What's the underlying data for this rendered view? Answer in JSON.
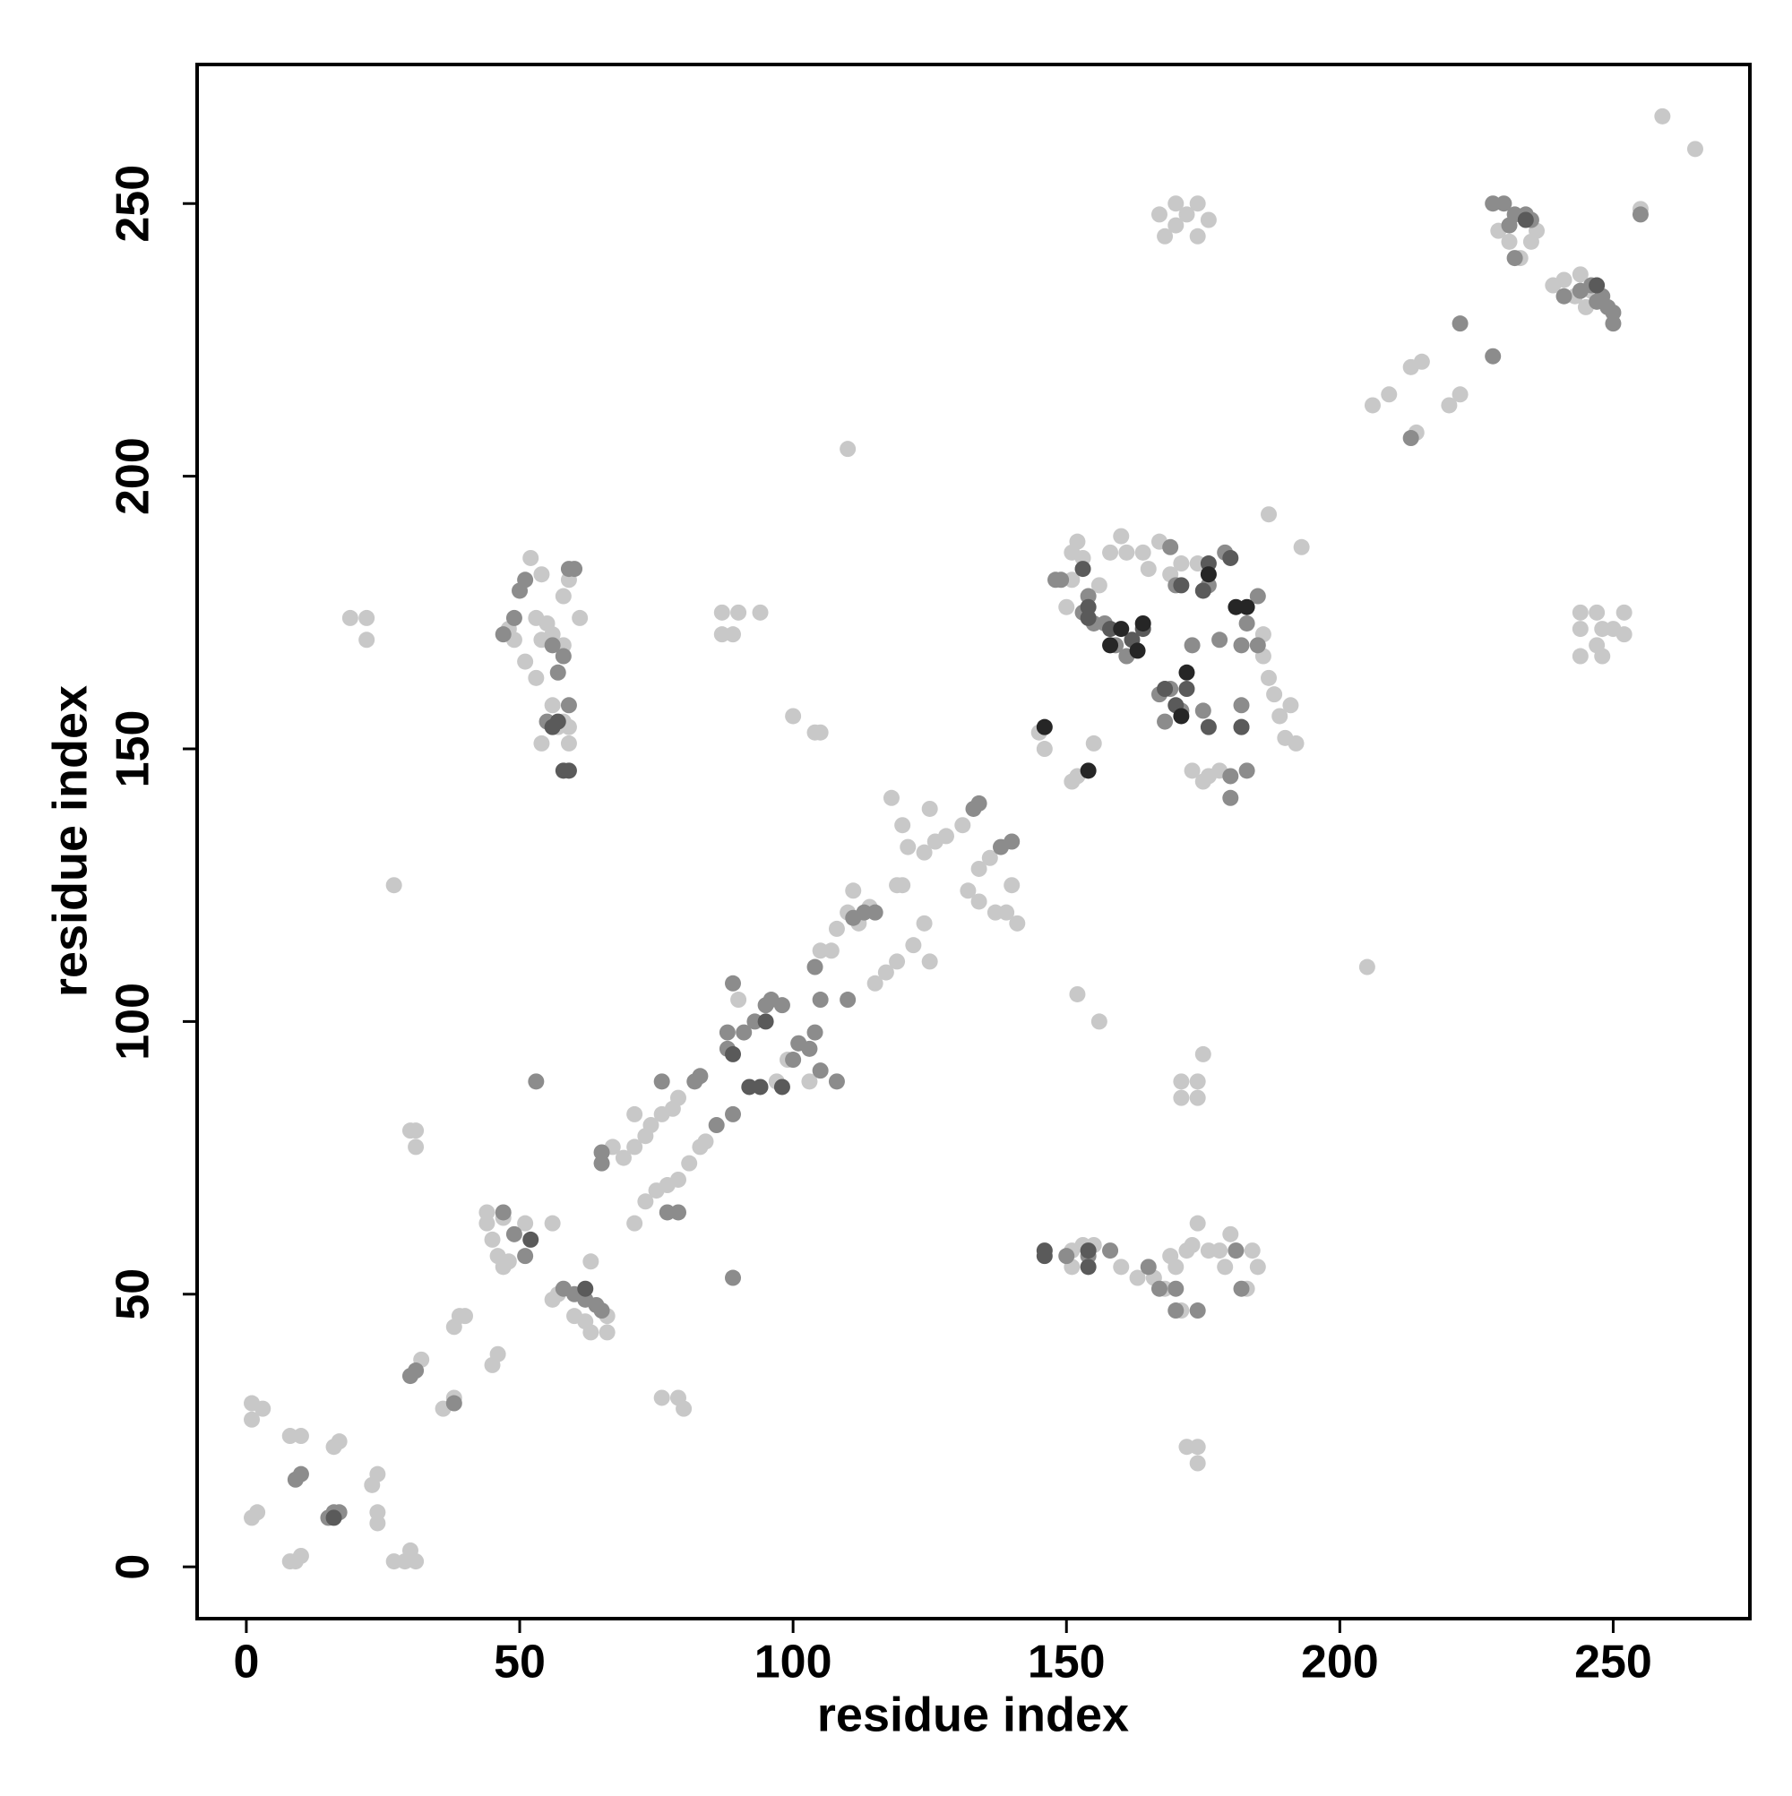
{
  "chart_data": {
    "type": "scatter",
    "xlabel": "residue index",
    "ylabel": "residue index",
    "xlim": [
      -9,
      275
    ],
    "ylim": [
      -9.5,
      275.5
    ],
    "xticks": [
      0,
      50,
      100,
      150,
      200,
      250
    ],
    "yticks": [
      0,
      50,
      100,
      150,
      200,
      250
    ],
    "series": [
      {
        "color": "#c8c8c8",
        "x": [
          1,
          1,
          1,
          2,
          3,
          8,
          9,
          10,
          10,
          8,
          16,
          17,
          23,
          24,
          24,
          24,
          27,
          29,
          30,
          31,
          30,
          31,
          31,
          27,
          19,
          22,
          22,
          32,
          36,
          38,
          38,
          40,
          39,
          45,
          46,
          44,
          45,
          46,
          47,
          48,
          44,
          47,
          51,
          56,
          56,
          57,
          60,
          62,
          63,
          66,
          66,
          63,
          67,
          69,
          71,
          71,
          73,
          74,
          76,
          78,
          79,
          71,
          73,
          75,
          77,
          79,
          81,
          83,
          84,
          79,
          80,
          76,
          87,
          87,
          89,
          90,
          94,
          100,
          104,
          105,
          110,
          90,
          97,
          99,
          101,
          103,
          105,
          107,
          108,
          110,
          111,
          112,
          114,
          119,
          120,
          118,
          120,
          121,
          124,
          125,
          125,
          126,
          128,
          115,
          117,
          119,
          122,
          124,
          131,
          134,
          136,
          137,
          139,
          132,
          134,
          140,
          141,
          145,
          146,
          151,
          152,
          155,
          152,
          156,
          150,
          151,
          151,
          152,
          153,
          156,
          158,
          160,
          161,
          164,
          165,
          167,
          169,
          171,
          174,
          176,
          186,
          186,
          187,
          188,
          189,
          190,
          191,
          192,
          173,
          175,
          176,
          178,
          187,
          193,
          167,
          170,
          170,
          172,
          174,
          174,
          176,
          168,
          172,
          174,
          174,
          171,
          171,
          174,
          174,
          175,
          151,
          151,
          153,
          155,
          160,
          163,
          166,
          168,
          169,
          170,
          171,
          172,
          173,
          174,
          176,
          178,
          179,
          180,
          181,
          184,
          185,
          183,
          205,
          206,
          209,
          213,
          215,
          214,
          220,
          222,
          229,
          231,
          233,
          235,
          236,
          239,
          241,
          243,
          244,
          245,
          246,
          255,
          259,
          265,
          244,
          244,
          247,
          247,
          248,
          250,
          252,
          252,
          248,
          244,
          52,
          54,
          53,
          54,
          55,
          56,
          58,
          59,
          61,
          58,
          56,
          58,
          59,
          59,
          53,
          51,
          49,
          48,
          54,
          57
        ],
        "values": [
          27,
          30,
          9,
          10,
          29,
          1,
          1,
          2,
          24,
          24,
          22,
          23,
          15,
          17,
          10,
          8,
          1,
          1,
          3,
          1,
          80,
          80,
          77,
          125,
          174,
          174,
          170,
          38,
          29,
          31,
          44,
          46,
          46,
          37,
          39,
          63,
          60,
          57,
          55,
          56,
          65,
          64,
          63,
          63,
          49,
          50,
          46,
          45,
          43,
          43,
          46,
          56,
          77,
          75,
          77,
          83,
          79,
          81,
          83,
          84,
          86,
          63,
          67,
          69,
          70,
          71,
          74,
          77,
          78,
          31,
          29,
          31,
          175,
          171,
          171,
          175,
          175,
          156,
          153,
          153,
          205,
          104,
          89,
          93,
          96,
          89,
          113,
          113,
          117,
          120,
          124,
          118,
          121,
          125,
          125,
          141,
          136,
          132,
          131,
          139,
          111,
          133,
          134,
          107,
          109,
          111,
          114,
          118,
          136,
          128,
          130,
          120,
          120,
          124,
          122,
          125,
          118,
          153,
          150,
          144,
          145,
          151,
          105,
          100,
          176,
          181,
          186,
          188,
          185,
          180,
          186,
          189,
          186,
          186,
          183,
          188,
          182,
          184,
          184,
          182,
          171,
          167,
          163,
          160,
          156,
          152,
          158,
          151,
          146,
          144,
          145,
          146,
          193,
          187,
          248,
          250,
          246,
          248,
          244,
          250,
          247,
          244,
          22,
          22,
          19,
          86,
          89,
          89,
          86,
          94,
          55,
          58,
          59,
          59,
          55,
          53,
          53,
          51,
          57,
          55,
          47,
          58,
          59,
          63,
          58,
          58,
          55,
          61,
          58,
          58,
          55,
          51,
          110,
          213,
          215,
          220,
          221,
          208,
          213,
          215,
          245,
          243,
          240,
          243,
          245,
          235,
          236,
          233,
          237,
          231,
          234,
          249,
          266,
          260,
          172,
          175,
          175,
          169,
          172,
          172,
          175,
          171,
          167,
          167,
          185,
          182,
          174,
          170,
          173,
          171,
          178,
          181,
          174,
          169,
          158,
          155,
          151,
          154,
          163,
          166,
          170,
          172,
          151,
          154
        ]
      },
      {
        "color": "#8c8c8c",
        "x": [
          9,
          10,
          15,
          16,
          17,
          30,
          31,
          38,
          47,
          49,
          51,
          53,
          58,
          60,
          62,
          64,
          65,
          65,
          65,
          77,
          79,
          76,
          82,
          83,
          86,
          89,
          89,
          88,
          88,
          91,
          93,
          95,
          96,
          98,
          100,
          101,
          104,
          103,
          105,
          108,
          104,
          105,
          110,
          111,
          113,
          115,
          133,
          134,
          140,
          138,
          89,
          49,
          47,
          51,
          50,
          56,
          58,
          57,
          59,
          55,
          59,
          60,
          148,
          149,
          154,
          155,
          153,
          157,
          159,
          161,
          167,
          169,
          168,
          171,
          175,
          169,
          170,
          176,
          179,
          183,
          185,
          185,
          182,
          182,
          183,
          180,
          180,
          150,
          154,
          158,
          165,
          167,
          170,
          170,
          174,
          181,
          182,
          228,
          230,
          231,
          232,
          234,
          235,
          232,
          222,
          228,
          213,
          241,
          247,
          249,
          250,
          250,
          244,
          246,
          248,
          255,
          182,
          178,
          173
        ],
        "values": [
          16,
          17,
          9,
          10,
          10,
          35,
          36,
          30,
          65,
          61,
          57,
          89,
          51,
          50,
          49,
          48,
          47,
          76,
          74,
          65,
          65,
          89,
          89,
          90,
          81,
          83,
          107,
          98,
          95,
          98,
          100,
          103,
          104,
          103,
          93,
          96,
          98,
          95,
          91,
          89,
          110,
          104,
          104,
          119,
          120,
          120,
          139,
          140,
          133,
          132,
          53,
          174,
          171,
          181,
          179,
          169,
          167,
          164,
          158,
          155,
          183,
          183,
          181,
          181,
          178,
          173,
          175,
          173,
          169,
          167,
          160,
          161,
          155,
          157,
          157,
          187,
          180,
          180,
          186,
          173,
          178,
          169,
          158,
          154,
          146,
          145,
          141,
          57,
          57,
          58,
          55,
          51,
          51,
          47,
          47,
          58,
          51,
          250,
          250,
          246,
          248,
          248,
          247,
          240,
          228,
          222,
          207,
          233,
          232,
          231,
          228,
          230,
          234,
          235,
          233,
          248,
          169,
          170,
          169
        ]
      },
      {
        "color": "#5a5a5a",
        "x": [
          16,
          154,
          154,
          146,
          146,
          153,
          154,
          154,
          158,
          162,
          164,
          170,
          172,
          168,
          176,
          182,
          180,
          175,
          247,
          234,
          58,
          59,
          57,
          56,
          92,
          94,
          98,
          95,
          89,
          62,
          52,
          171,
          176
        ],
        "values": [
          9,
          55,
          58,
          58,
          57,
          183,
          176,
          174,
          172,
          170,
          172,
          158,
          161,
          161,
          154,
          154,
          185,
          179,
          235,
          247,
          146,
          146,
          155,
          154,
          88,
          88,
          88,
          100,
          94,
          51,
          60,
          180,
          184
        ]
      },
      {
        "color": "#262626",
        "x": [
          146,
          154,
          158,
          160,
          163,
          172,
          176,
          183,
          181,
          164,
          171
        ],
        "values": [
          154,
          146,
          169,
          172,
          168,
          164,
          182,
          176,
          176,
          173,
          156
        ]
      }
    ]
  }
}
